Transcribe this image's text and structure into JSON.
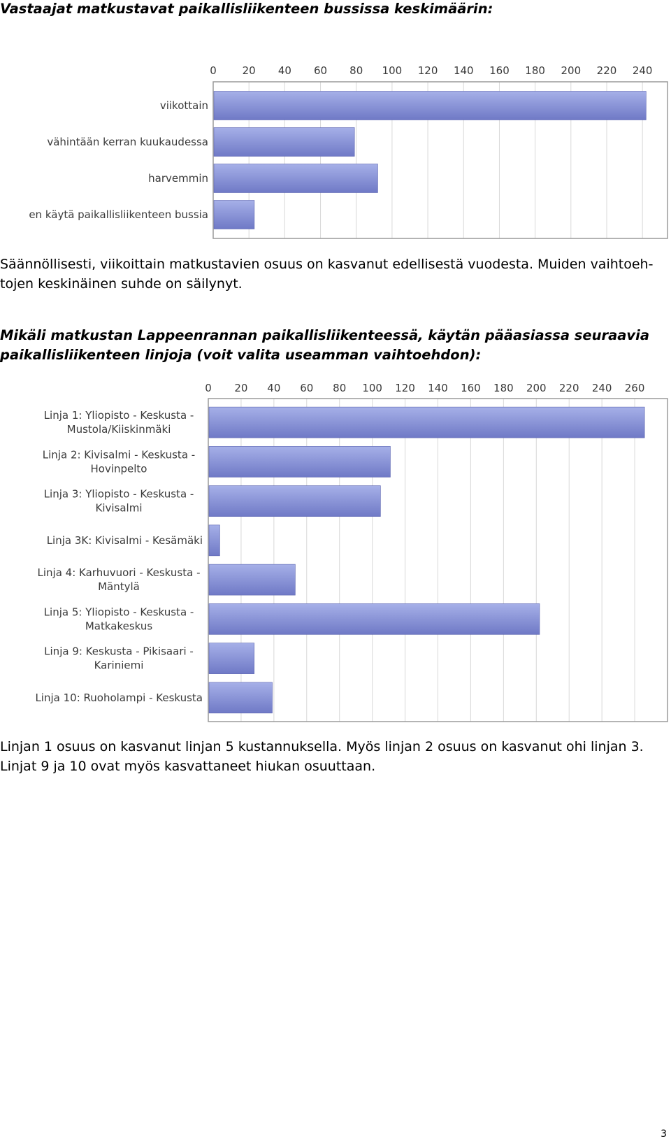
{
  "section1": {
    "heading": "Vastaajat matkustavat paikallisliikenteen bussissa keskimäärin:",
    "paragraph_line1": "Säännöllisesti, viikoittain matkustavien osuus on kasvanut edellisestä vuodesta. Muiden vaihtoeh-",
    "paragraph_line2": "tojen keskinäinen suhde on säilynyt."
  },
  "section2": {
    "heading_line1": "Mikäli matkustan Lappeenrannan paikallisliikenteessä, käytän pääasiassa seuraavia",
    "heading_line2": "paikallisliikenteen linjoja (voit valita useamman vaihtoehdon):",
    "paragraph_line1": "Linjan 1 osuus on kasvanut linjan 5 kustannuksella. Myös linjan 2 osuus on kasvanut ohi linjan 3.",
    "paragraph_line2": "Linjat 9 ja 10 ovat myös kasvattaneet hiukan osuuttaan."
  },
  "page_number": "3",
  "colors": {
    "bar_light": "#a6b0e8",
    "bar_dark": "#6f79c6",
    "plot_border": "#9a9a9a",
    "grid": "#d8d8d8"
  },
  "chart_data": [
    {
      "type": "bar",
      "orientation": "horizontal",
      "categories": [
        "viikottain",
        "vähintään kerran kuukaudessa",
        "harvemmin",
        "en käytä paikallisliikenteen bussia"
      ],
      "values": [
        242,
        79,
        92,
        23
      ],
      "xlim": [
        0,
        254
      ],
      "ticks": [
        0,
        20,
        40,
        60,
        80,
        100,
        120,
        140,
        160,
        180,
        200,
        220,
        240
      ],
      "axis_position": "top",
      "grid": true
    },
    {
      "type": "bar",
      "orientation": "horizontal",
      "categories": [
        [
          "Linja 1: Yliopisto - Keskusta -",
          "Mustola/Kiiskinmäki"
        ],
        [
          "Linja 2: Kivisalmi - Keskusta -",
          "Hovinpelto"
        ],
        [
          "Linja 3: Yliopisto - Keskusta -",
          "Kivisalmi"
        ],
        [
          "Linja 3K: Kivisalmi - Kesämäki"
        ],
        [
          "Linja 4: Karhuvuori - Keskusta -",
          "Mäntylä"
        ],
        [
          "Linja 5: Yliopisto - Keskusta -",
          "Matkakeskus"
        ],
        [
          "Linja 9: Keskusta - Pikisaari -",
          "Kariniemi"
        ],
        [
          "Linja 10: Ruoholampi - Keskusta"
        ]
      ],
      "values": [
        266,
        111,
        105,
        7,
        53,
        202,
        28,
        39
      ],
      "xlim": [
        0,
        280
      ],
      "ticks": [
        0,
        20,
        40,
        60,
        80,
        100,
        120,
        140,
        160,
        180,
        200,
        220,
        240,
        260
      ],
      "axis_position": "top",
      "grid": true
    }
  ]
}
